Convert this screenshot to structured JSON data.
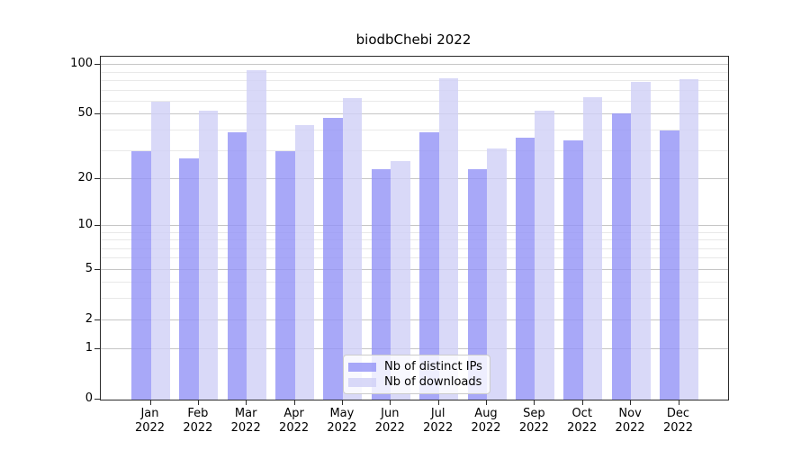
{
  "chart_data": {
    "type": "bar",
    "title": "biodbChebi 2022",
    "categories": [
      "Jan 2022",
      "Feb 2022",
      "Mar 2022",
      "Apr 2022",
      "May 2022",
      "Jun 2022",
      "Jul 2022",
      "Aug 2022",
      "Sep 2022",
      "Oct 2022",
      "Nov 2022",
      "Dec 2022"
    ],
    "x_tick_labels": [
      [
        "Jan",
        "2022"
      ],
      [
        "Feb",
        "2022"
      ],
      [
        "Mar",
        "2022"
      ],
      [
        "Apr",
        "2022"
      ],
      [
        "May",
        "2022"
      ],
      [
        "Jun",
        "2022"
      ],
      [
        "Jul",
        "2022"
      ],
      [
        "Aug",
        "2022"
      ],
      [
        "Sep",
        "2022"
      ],
      [
        "Oct",
        "2022"
      ],
      [
        "Nov",
        "2022"
      ],
      [
        "Dec",
        "2022"
      ]
    ],
    "series": [
      {
        "name": "Nb of distinct IPs",
        "color": "rgba(146,146,246,0.8)",
        "values": [
          30,
          27,
          39,
          30,
          48,
          23,
          39,
          23,
          36,
          35,
          51,
          40
        ]
      },
      {
        "name": "Nb of downloads",
        "color": "rgba(208,208,246,0.8)",
        "values": [
          60,
          53,
          93,
          43,
          63,
          26,
          83,
          31,
          53,
          64,
          79,
          82
        ]
      }
    ],
    "yscale": "log1p",
    "ylim": [
      0,
      113
    ],
    "y_ticks": [
      100,
      50,
      20,
      10,
      5,
      2,
      1,
      0
    ],
    "y_minor_gridlines": [
      3,
      4,
      6,
      7,
      8,
      9,
      30,
      40,
      60,
      70,
      80,
      90
    ],
    "xlabel": "",
    "ylabel": "",
    "grid": true,
    "legend_position": "lower center"
  },
  "colors": {
    "background": "#ffffff",
    "spine": "#2b2b2b",
    "grid_major": "#c6c6c6",
    "grid_minor": "#e9e9e9",
    "series_ips": "rgba(146,146,246,0.8)",
    "series_downloads": "rgba(208,208,246,0.8)"
  }
}
